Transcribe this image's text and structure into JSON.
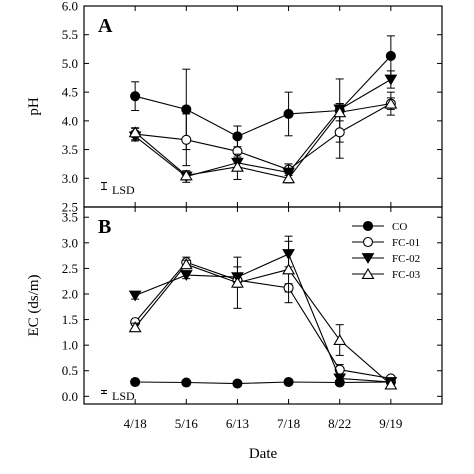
{
  "chart_data": {
    "type": "line",
    "xlabel": "Date",
    "categories": [
      "4/18",
      "5/16",
      "6/13",
      "7/18",
      "8/22",
      "9/19"
    ],
    "legend": {
      "placement": "top-right of panel B",
      "entries": [
        {
          "name": "CO",
          "marker": "filled-circle"
        },
        {
          "name": "FC-01",
          "marker": "open-circle"
        },
        {
          "name": "FC-02",
          "marker": "filled-triangle-down"
        },
        {
          "name": "FC-03",
          "marker": "open-triangle-up"
        }
      ]
    },
    "panels": [
      {
        "label": "A",
        "ylabel": "pH",
        "ylim": [
          2.5,
          6.0
        ],
        "yticks": [
          "2.5",
          "3.0",
          "3.5",
          "4.0",
          "4.5",
          "5.0",
          "5.5",
          "6.0"
        ],
        "lsd_label": "LSD",
        "lsd_half_width": 0.06,
        "series": [
          {
            "name": "CO",
            "values": [
              4.43,
              4.2,
              3.73,
              4.12,
              4.18,
              5.13
            ],
            "errors": [
              0.25,
              0.7,
              0.18,
              0.38,
              0.55,
              0.35
            ]
          },
          {
            "name": "FC-01",
            "values": [
              3.77,
              3.67,
              3.47,
              3.15,
              3.8,
              4.3
            ],
            "errors": [
              0.1,
              0.45,
              0.28,
              0.1,
              0.45,
              0.2
            ]
          },
          {
            "name": "FC-02",
            "values": [
              3.73,
              3.03,
              3.27,
              3.1,
              4.2,
              4.72
            ],
            "errors": [
              0.08,
              0.1,
              0.1,
              0.15,
              0.1,
              0.15
            ]
          },
          {
            "name": "FC-03",
            "values": [
              3.8,
              3.05,
              3.2,
              3.0,
              4.15,
              4.3
            ],
            "errors": [
              0.08,
              0.08,
              0.22,
              0.08,
              0.15,
              0.1
            ]
          }
        ]
      },
      {
        "label": "B",
        "ylabel": "EC (ds/m)",
        "ylim": [
          -0.15,
          3.7
        ],
        "yticks": [
          "0.0",
          "0.5",
          "1.0",
          "1.5",
          "2.0",
          "2.5",
          "3.0",
          "3.5"
        ],
        "lsd_label": "LSD",
        "lsd_half_width": 0.03,
        "series": [
          {
            "name": "CO",
            "values": [
              0.28,
              0.27,
              0.25,
              0.28,
              0.27,
              0.28
            ],
            "errors": [
              0.02,
              0.02,
              0.02,
              0.02,
              0.02,
              0.02
            ]
          },
          {
            "name": "FC-01",
            "values": [
              1.45,
              2.62,
              2.27,
              2.12,
              0.52,
              0.35
            ],
            "errors": [
              0.05,
              0.1,
              0.12,
              0.08,
              0.1,
              0.05
            ]
          },
          {
            "name": "FC-02",
            "values": [
              1.97,
              2.37,
              2.33,
              2.78,
              0.35,
              0.28
            ],
            "errors": [
              0.07,
              0.07,
              0.2,
              0.25,
              0.05,
              0.05
            ]
          },
          {
            "name": "FC-03",
            "values": [
              1.35,
              2.58,
              2.22,
              2.48,
              1.1,
              0.23
            ],
            "errors": [
              0.08,
              0.08,
              0.5,
              0.65,
              0.3,
              0.03
            ]
          }
        ]
      }
    ]
  }
}
